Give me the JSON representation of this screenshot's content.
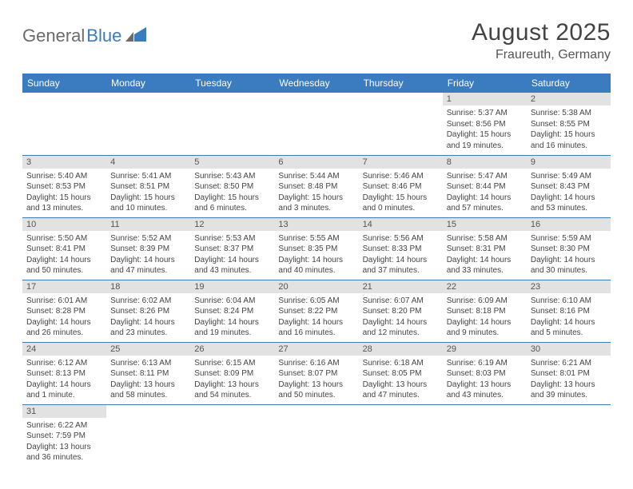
{
  "logo": {
    "part1": "General",
    "part2": "Blue"
  },
  "title": "August 2025",
  "subtitle": "Fraureuth, Germany",
  "colors": {
    "header_bg": "#3b7bbf",
    "header_fg": "#ffffff",
    "daynum_bg": "#e2e2e2",
    "row_border": "#3b7bbf",
    "logo_gray": "#6b6b6b",
    "logo_blue": "#3b7bbf"
  },
  "weekdays": [
    "Sunday",
    "Monday",
    "Tuesday",
    "Wednesday",
    "Thursday",
    "Friday",
    "Saturday"
  ],
  "weeks": [
    [
      null,
      null,
      null,
      null,
      null,
      {
        "n": "1",
        "sr": "Sunrise: 5:37 AM",
        "ss": "Sunset: 8:56 PM",
        "dl": "Daylight: 15 hours and 19 minutes."
      },
      {
        "n": "2",
        "sr": "Sunrise: 5:38 AM",
        "ss": "Sunset: 8:55 PM",
        "dl": "Daylight: 15 hours and 16 minutes."
      }
    ],
    [
      {
        "n": "3",
        "sr": "Sunrise: 5:40 AM",
        "ss": "Sunset: 8:53 PM",
        "dl": "Daylight: 15 hours and 13 minutes."
      },
      {
        "n": "4",
        "sr": "Sunrise: 5:41 AM",
        "ss": "Sunset: 8:51 PM",
        "dl": "Daylight: 15 hours and 10 minutes."
      },
      {
        "n": "5",
        "sr": "Sunrise: 5:43 AM",
        "ss": "Sunset: 8:50 PM",
        "dl": "Daylight: 15 hours and 6 minutes."
      },
      {
        "n": "6",
        "sr": "Sunrise: 5:44 AM",
        "ss": "Sunset: 8:48 PM",
        "dl": "Daylight: 15 hours and 3 minutes."
      },
      {
        "n": "7",
        "sr": "Sunrise: 5:46 AM",
        "ss": "Sunset: 8:46 PM",
        "dl": "Daylight: 15 hours and 0 minutes."
      },
      {
        "n": "8",
        "sr": "Sunrise: 5:47 AM",
        "ss": "Sunset: 8:44 PM",
        "dl": "Daylight: 14 hours and 57 minutes."
      },
      {
        "n": "9",
        "sr": "Sunrise: 5:49 AM",
        "ss": "Sunset: 8:43 PM",
        "dl": "Daylight: 14 hours and 53 minutes."
      }
    ],
    [
      {
        "n": "10",
        "sr": "Sunrise: 5:50 AM",
        "ss": "Sunset: 8:41 PM",
        "dl": "Daylight: 14 hours and 50 minutes."
      },
      {
        "n": "11",
        "sr": "Sunrise: 5:52 AM",
        "ss": "Sunset: 8:39 PM",
        "dl": "Daylight: 14 hours and 47 minutes."
      },
      {
        "n": "12",
        "sr": "Sunrise: 5:53 AM",
        "ss": "Sunset: 8:37 PM",
        "dl": "Daylight: 14 hours and 43 minutes."
      },
      {
        "n": "13",
        "sr": "Sunrise: 5:55 AM",
        "ss": "Sunset: 8:35 PM",
        "dl": "Daylight: 14 hours and 40 minutes."
      },
      {
        "n": "14",
        "sr": "Sunrise: 5:56 AM",
        "ss": "Sunset: 8:33 PM",
        "dl": "Daylight: 14 hours and 37 minutes."
      },
      {
        "n": "15",
        "sr": "Sunrise: 5:58 AM",
        "ss": "Sunset: 8:31 PM",
        "dl": "Daylight: 14 hours and 33 minutes."
      },
      {
        "n": "16",
        "sr": "Sunrise: 5:59 AM",
        "ss": "Sunset: 8:30 PM",
        "dl": "Daylight: 14 hours and 30 minutes."
      }
    ],
    [
      {
        "n": "17",
        "sr": "Sunrise: 6:01 AM",
        "ss": "Sunset: 8:28 PM",
        "dl": "Daylight: 14 hours and 26 minutes."
      },
      {
        "n": "18",
        "sr": "Sunrise: 6:02 AM",
        "ss": "Sunset: 8:26 PM",
        "dl": "Daylight: 14 hours and 23 minutes."
      },
      {
        "n": "19",
        "sr": "Sunrise: 6:04 AM",
        "ss": "Sunset: 8:24 PM",
        "dl": "Daylight: 14 hours and 19 minutes."
      },
      {
        "n": "20",
        "sr": "Sunrise: 6:05 AM",
        "ss": "Sunset: 8:22 PM",
        "dl": "Daylight: 14 hours and 16 minutes."
      },
      {
        "n": "21",
        "sr": "Sunrise: 6:07 AM",
        "ss": "Sunset: 8:20 PM",
        "dl": "Daylight: 14 hours and 12 minutes."
      },
      {
        "n": "22",
        "sr": "Sunrise: 6:09 AM",
        "ss": "Sunset: 8:18 PM",
        "dl": "Daylight: 14 hours and 9 minutes."
      },
      {
        "n": "23",
        "sr": "Sunrise: 6:10 AM",
        "ss": "Sunset: 8:16 PM",
        "dl": "Daylight: 14 hours and 5 minutes."
      }
    ],
    [
      {
        "n": "24",
        "sr": "Sunrise: 6:12 AM",
        "ss": "Sunset: 8:13 PM",
        "dl": "Daylight: 14 hours and 1 minute."
      },
      {
        "n": "25",
        "sr": "Sunrise: 6:13 AM",
        "ss": "Sunset: 8:11 PM",
        "dl": "Daylight: 13 hours and 58 minutes."
      },
      {
        "n": "26",
        "sr": "Sunrise: 6:15 AM",
        "ss": "Sunset: 8:09 PM",
        "dl": "Daylight: 13 hours and 54 minutes."
      },
      {
        "n": "27",
        "sr": "Sunrise: 6:16 AM",
        "ss": "Sunset: 8:07 PM",
        "dl": "Daylight: 13 hours and 50 minutes."
      },
      {
        "n": "28",
        "sr": "Sunrise: 6:18 AM",
        "ss": "Sunset: 8:05 PM",
        "dl": "Daylight: 13 hours and 47 minutes."
      },
      {
        "n": "29",
        "sr": "Sunrise: 6:19 AM",
        "ss": "Sunset: 8:03 PM",
        "dl": "Daylight: 13 hours and 43 minutes."
      },
      {
        "n": "30",
        "sr": "Sunrise: 6:21 AM",
        "ss": "Sunset: 8:01 PM",
        "dl": "Daylight: 13 hours and 39 minutes."
      }
    ],
    [
      {
        "n": "31",
        "sr": "Sunrise: 6:22 AM",
        "ss": "Sunset: 7:59 PM",
        "dl": "Daylight: 13 hours and 36 minutes."
      },
      null,
      null,
      null,
      null,
      null,
      null
    ]
  ]
}
